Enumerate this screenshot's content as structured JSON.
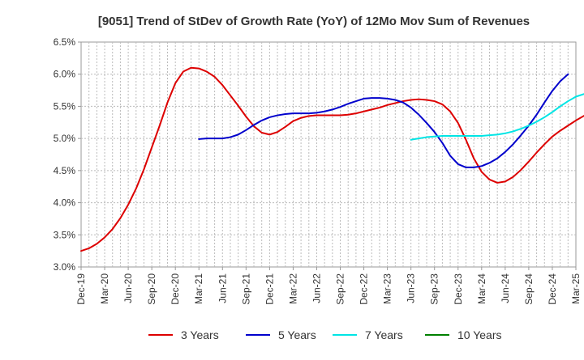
{
  "chart_data": {
    "type": "line",
    "title": "[9051]  Trend of StDev of Growth Rate (YoY) of 12Mo Mov Sum of Revenues",
    "xlabel": "",
    "ylabel": "",
    "ylim": [
      3.0,
      6.5
    ],
    "y_ticks": [
      3.0,
      3.5,
      4.0,
      4.5,
      5.0,
      5.5,
      6.0,
      6.5
    ],
    "y_tick_labels": [
      "3.0%",
      "3.5%",
      "4.0%",
      "4.5%",
      "5.0%",
      "5.5%",
      "6.0%",
      "6.5%"
    ],
    "x_tick_labels": [
      "Dec-19",
      "Mar-20",
      "Jun-20",
      "Sep-20",
      "Dec-20",
      "Mar-21",
      "Jun-21",
      "Sep-21",
      "Dec-21",
      "Mar-22",
      "Jun-22",
      "Sep-22",
      "Dec-22",
      "Mar-23",
      "Jun-23",
      "Sep-23",
      "Dec-23",
      "Mar-24",
      "Jun-24",
      "Sep-24",
      "Dec-24",
      "Mar-25"
    ],
    "grid": true,
    "legend_position": "bottom",
    "series": [
      {
        "name": "3 Years",
        "color": "#dd0000",
        "start_index": 0,
        "values": [
          3.25,
          3.29,
          3.36,
          3.46,
          3.59,
          3.76,
          3.97,
          4.22,
          4.52,
          4.86,
          5.2,
          5.56,
          5.86,
          6.04,
          6.1,
          6.09,
          6.04,
          5.96,
          5.83,
          5.67,
          5.51,
          5.34,
          5.19,
          5.09,
          5.06,
          5.1,
          5.18,
          5.27,
          5.32,
          5.35,
          5.36,
          5.36,
          5.36,
          5.36,
          5.37,
          5.39,
          5.42,
          5.45,
          5.48,
          5.52,
          5.55,
          5.58,
          5.6,
          5.61,
          5.6,
          5.58,
          5.53,
          5.42,
          5.24,
          4.98,
          4.69,
          4.48,
          4.36,
          4.31,
          4.33,
          4.4,
          4.51,
          4.64,
          4.78,
          4.91,
          5.03,
          5.12,
          5.2,
          5.28,
          5.35,
          5.42
        ]
      },
      {
        "name": "5 Years",
        "color": "#0000cc",
        "start_index": 15,
        "values": [
          4.99,
          5.0,
          5.0,
          5.0,
          5.02,
          5.06,
          5.13,
          5.21,
          5.28,
          5.33,
          5.36,
          5.38,
          5.39,
          5.39,
          5.39,
          5.4,
          5.42,
          5.45,
          5.49,
          5.54,
          5.58,
          5.62,
          5.63,
          5.63,
          5.62,
          5.6,
          5.56,
          5.48,
          5.37,
          5.24,
          5.1,
          4.93,
          4.73,
          4.6,
          4.55,
          4.55,
          4.57,
          4.62,
          4.69,
          4.79,
          4.91,
          5.05,
          5.2,
          5.37,
          5.56,
          5.74,
          5.89,
          6.0
        ]
      },
      {
        "name": "7 Years",
        "color": "#00e5e5",
        "start_index": 42,
        "values": [
          4.98,
          5.0,
          5.02,
          5.03,
          5.04,
          5.04,
          5.04,
          5.04,
          5.04,
          5.04,
          5.05,
          5.06,
          5.08,
          5.11,
          5.15,
          5.2,
          5.26,
          5.33,
          5.41,
          5.5,
          5.58,
          5.65,
          5.69,
          5.71
        ]
      },
      {
        "name": "10 Years",
        "color": "#008000",
        "start_index": 0,
        "values": []
      }
    ]
  }
}
